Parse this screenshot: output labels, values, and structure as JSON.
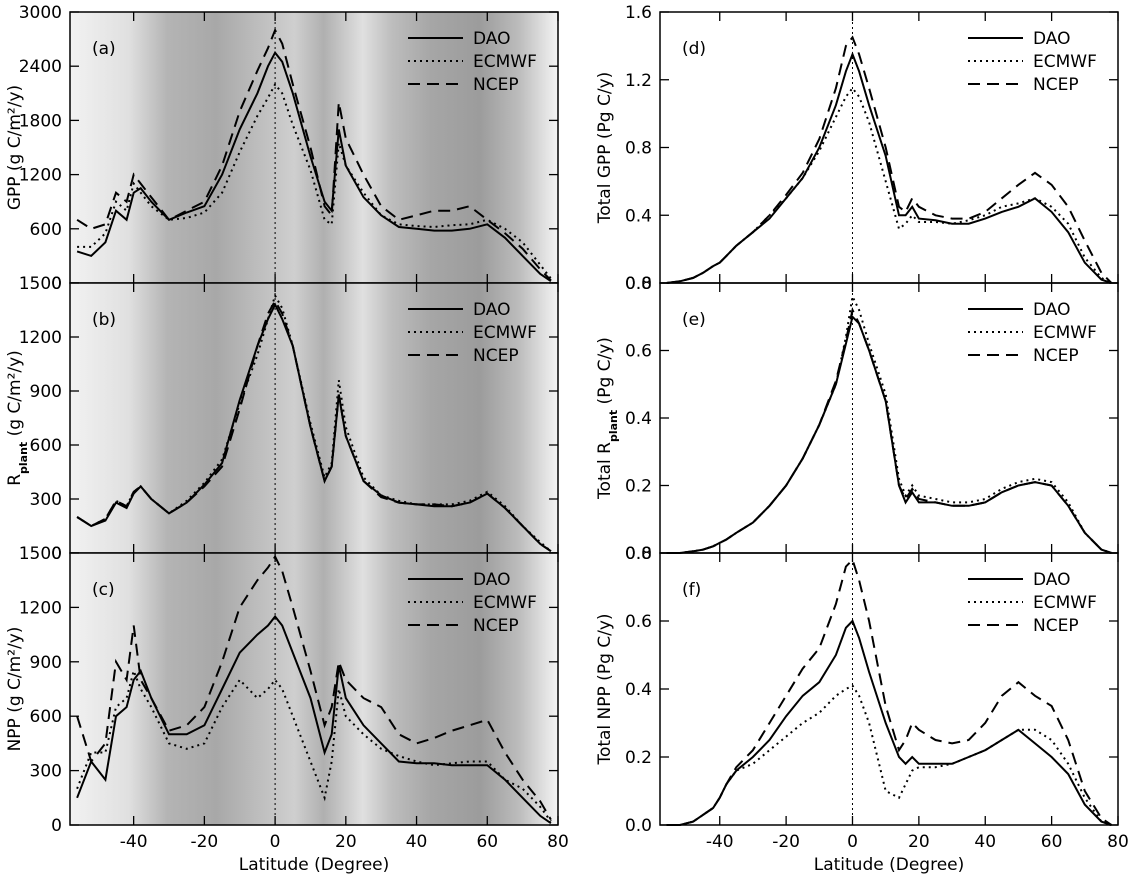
{
  "chart_data": [
    {
      "type": "line",
      "panel_label": "(a)",
      "ylabel": [
        "GPP (g C/m²/y)"
      ],
      "shaded": true,
      "xtick_labels": false,
      "xlim": [
        -58,
        80
      ],
      "xticks": [
        -40,
        -20,
        0,
        20,
        40,
        60,
        80
      ],
      "ylim": [
        0,
        3000
      ],
      "yticks": [
        0,
        600,
        1200,
        1800,
        2400,
        3000
      ],
      "vline": 0,
      "x": [
        -56,
        -52,
        -48,
        -45,
        -42,
        -40,
        -38,
        -35,
        -30,
        -25,
        -20,
        -15,
        -10,
        -5,
        -2,
        0,
        2,
        5,
        10,
        14,
        16,
        18,
        20,
        25,
        30,
        35,
        40,
        45,
        50,
        55,
        60,
        65,
        70,
        75,
        78
      ],
      "series": [
        {
          "name": "DAO",
          "color": "#000000",
          "dash": "solid",
          "values": [
            350,
            300,
            450,
            800,
            700,
            1000,
            1050,
            900,
            700,
            780,
            850,
            1200,
            1700,
            2100,
            2400,
            2550,
            2450,
            2100,
            1400,
            900,
            800,
            1700,
            1300,
            950,
            750,
            620,
            600,
            580,
            580,
            600,
            650,
            500,
            300,
            100,
            20
          ]
        },
        {
          "name": "ECMWF",
          "color": "#000000",
          "dash": "dotted",
          "values": [
            400,
            400,
            550,
            900,
            800,
            1100,
            1000,
            850,
            700,
            720,
            780,
            1000,
            1450,
            1850,
            2050,
            2200,
            2100,
            1750,
            1250,
            700,
            650,
            1550,
            1300,
            1000,
            750,
            650,
            630,
            620,
            640,
            650,
            700,
            600,
            450,
            200,
            50
          ]
        },
        {
          "name": "NCEP",
          "color": "#000000",
          "dash": "dashed",
          "values": [
            700,
            600,
            650,
            1000,
            900,
            1200,
            1100,
            950,
            700,
            800,
            900,
            1300,
            1900,
            2350,
            2600,
            2800,
            2650,
            2200,
            1500,
            850,
            750,
            2000,
            1600,
            1200,
            850,
            700,
            750,
            800,
            800,
            850,
            700,
            550,
            380,
            150,
            30
          ]
        }
      ]
    },
    {
      "type": "line",
      "panel_label": "(b)",
      "ylabel": [
        "R",
        "plant",
        " (g C/m²/y)"
      ],
      "shaded": true,
      "xtick_labels": false,
      "xlim": [
        -58,
        80
      ],
      "xticks": [
        -40,
        -20,
        0,
        20,
        40,
        60,
        80
      ],
      "ylim": [
        0,
        1500
      ],
      "yticks": [
        0,
        300,
        600,
        900,
        1200,
        1500
      ],
      "vline": 0,
      "x": [
        -56,
        -52,
        -48,
        -45,
        -42,
        -40,
        -38,
        -35,
        -30,
        -25,
        -20,
        -15,
        -10,
        -5,
        -2,
        0,
        2,
        5,
        10,
        14,
        16,
        18,
        20,
        25,
        30,
        35,
        40,
        45,
        50,
        55,
        60,
        65,
        70,
        75,
        78
      ],
      "series": [
        {
          "name": "DAO",
          "color": "#000000",
          "dash": "solid",
          "values": [
            200,
            150,
            180,
            280,
            250,
            330,
            370,
            300,
            220,
            280,
            380,
            500,
            850,
            1150,
            1300,
            1380,
            1300,
            1150,
            700,
            400,
            480,
            880,
            650,
            400,
            320,
            280,
            270,
            260,
            260,
            280,
            330,
            250,
            150,
            50,
            10
          ]
        },
        {
          "name": "ECMWF",
          "color": "#000000",
          "dash": "dotted",
          "values": [
            200,
            150,
            190,
            290,
            260,
            340,
            370,
            300,
            220,
            290,
            390,
            520,
            830,
            1100,
            1300,
            1430,
            1360,
            1150,
            720,
            420,
            500,
            960,
            700,
            420,
            320,
            290,
            270,
            270,
            270,
            290,
            340,
            260,
            150,
            60,
            10
          ]
        },
        {
          "name": "NCEP",
          "color": "#000000",
          "dash": "dashed",
          "values": [
            200,
            150,
            190,
            290,
            260,
            340,
            370,
            300,
            220,
            280,
            370,
            480,
            800,
            1150,
            1330,
            1400,
            1330,
            1150,
            700,
            400,
            480,
            880,
            650,
            400,
            310,
            280,
            270,
            270,
            260,
            280,
            330,
            250,
            150,
            50,
            10
          ]
        }
      ]
    },
    {
      "type": "line",
      "panel_label": "(c)",
      "ylabel": [
        "NPP (g C/m²/y)"
      ],
      "shaded": true,
      "xtick_labels": true,
      "xlabel": "Latitude (Degree)",
      "xlim": [
        -58,
        80
      ],
      "xticks": [
        -40,
        -20,
        0,
        20,
        40,
        60,
        80
      ],
      "ylim": [
        0,
        1500
      ],
      "yticks": [
        0,
        300,
        600,
        900,
        1200,
        1500
      ],
      "vline": 0,
      "x": [
        -56,
        -52,
        -48,
        -45,
        -42,
        -40,
        -38,
        -35,
        -30,
        -25,
        -20,
        -15,
        -10,
        -5,
        -2,
        0,
        2,
        5,
        10,
        14,
        16,
        18,
        20,
        25,
        30,
        35,
        40,
        45,
        50,
        55,
        60,
        65,
        70,
        75,
        78
      ],
      "series": [
        {
          "name": "DAO",
          "color": "#000000",
          "dash": "solid",
          "values": [
            150,
            350,
            250,
            600,
            650,
            800,
            850,
            700,
            500,
            500,
            550,
            750,
            950,
            1050,
            1100,
            1150,
            1100,
            950,
            700,
            400,
            500,
            880,
            700,
            550,
            450,
            350,
            340,
            340,
            330,
            330,
            330,
            250,
            150,
            50,
            10
          ]
        },
        {
          "name": "ECMWF",
          "color": "#000000",
          "dash": "dotted",
          "values": [
            200,
            400,
            400,
            650,
            700,
            850,
            750,
            650,
            450,
            420,
            450,
            650,
            800,
            700,
            750,
            800,
            750,
            600,
            350,
            150,
            350,
            750,
            600,
            500,
            420,
            380,
            350,
            330,
            340,
            350,
            350,
            250,
            200,
            100,
            20
          ]
        },
        {
          "name": "NCEP",
          "color": "#000000",
          "dash": "dashed",
          "values": [
            600,
            350,
            450,
            900,
            800,
            1100,
            800,
            700,
            520,
            550,
            650,
            900,
            1200,
            1350,
            1420,
            1480,
            1400,
            1200,
            850,
            550,
            650,
            900,
            800,
            700,
            650,
            500,
            450,
            480,
            520,
            550,
            580,
            400,
            250,
            130,
            30
          ]
        }
      ]
    },
    {
      "type": "line",
      "panel_label": "(d)",
      "ylabel": [
        "Total GPP (Pg C/y)"
      ],
      "shaded": false,
      "xtick_labels": false,
      "xlim": [
        -58,
        80
      ],
      "xticks": [
        -40,
        -20,
        0,
        20,
        40,
        60,
        80
      ],
      "ylim": [
        0,
        1.6
      ],
      "yticks": [
        {
          "value": 0,
          "label": "0.0"
        },
        0.4,
        0.8,
        1.2,
        1.6
      ],
      "vline": 0,
      "x": [
        -56,
        -52,
        -48,
        -45,
        -42,
        -40,
        -38,
        -35,
        -30,
        -25,
        -20,
        -15,
        -10,
        -5,
        -2,
        0,
        2,
        5,
        10,
        14,
        16,
        18,
        20,
        25,
        30,
        35,
        40,
        45,
        50,
        55,
        60,
        65,
        70,
        75,
        78
      ],
      "series": [
        {
          "name": "DAO",
          "color": "#000000",
          "dash": "solid",
          "values": [
            0,
            0.01,
            0.03,
            0.06,
            0.1,
            0.12,
            0.16,
            0.22,
            0.3,
            0.38,
            0.5,
            0.62,
            0.8,
            1.05,
            1.25,
            1.35,
            1.25,
            1.05,
            0.75,
            0.4,
            0.4,
            0.45,
            0.38,
            0.37,
            0.35,
            0.35,
            0.38,
            0.42,
            0.45,
            0.5,
            0.42,
            0.3,
            0.12,
            0.02,
            0
          ]
        },
        {
          "name": "ECMWF",
          "color": "#000000",
          "dash": "dotted",
          "values": [
            0,
            0.01,
            0.03,
            0.06,
            0.1,
            0.12,
            0.16,
            0.22,
            0.3,
            0.4,
            0.5,
            0.62,
            0.78,
            0.98,
            1.1,
            1.15,
            1.1,
            0.95,
            0.6,
            0.32,
            0.35,
            0.4,
            0.36,
            0.36,
            0.35,
            0.37,
            0.4,
            0.45,
            0.47,
            0.5,
            0.45,
            0.35,
            0.15,
            0.03,
            0
          ]
        },
        {
          "name": "NCEP",
          "color": "#000000",
          "dash": "dashed",
          "values": [
            0,
            0.01,
            0.03,
            0.06,
            0.1,
            0.12,
            0.16,
            0.22,
            0.3,
            0.4,
            0.52,
            0.65,
            0.85,
            1.15,
            1.4,
            1.45,
            1.35,
            1.15,
            0.8,
            0.45,
            0.42,
            0.5,
            0.45,
            0.4,
            0.38,
            0.38,
            0.42,
            0.5,
            0.58,
            0.65,
            0.58,
            0.45,
            0.25,
            0.06,
            0
          ]
        }
      ]
    },
    {
      "type": "line",
      "panel_label": "(e)",
      "ylabel": [
        "Total R",
        "plant",
        " (Pg C/y)"
      ],
      "shaded": false,
      "xtick_labels": false,
      "xlim": [
        -58,
        80
      ],
      "xticks": [
        -40,
        -20,
        0,
        20,
        40,
        60,
        80
      ],
      "ylim": [
        0,
        0.8
      ],
      "yticks": [
        {
          "value": 0,
          "label": "0.0"
        },
        0.2,
        0.4,
        0.6,
        0.8
      ],
      "vline": 0,
      "x": [
        -56,
        -52,
        -48,
        -45,
        -42,
        -40,
        -38,
        -35,
        -30,
        -25,
        -20,
        -15,
        -10,
        -5,
        -2,
        0,
        2,
        5,
        10,
        14,
        16,
        18,
        20,
        25,
        30,
        35,
        40,
        45,
        50,
        55,
        60,
        65,
        70,
        75,
        78
      ],
      "series": [
        {
          "name": "DAO",
          "color": "#000000",
          "dash": "solid",
          "values": [
            0,
            0,
            0.005,
            0.01,
            0.02,
            0.03,
            0.04,
            0.06,
            0.09,
            0.14,
            0.2,
            0.28,
            0.38,
            0.5,
            0.62,
            0.7,
            0.68,
            0.6,
            0.45,
            0.2,
            0.15,
            0.18,
            0.15,
            0.15,
            0.14,
            0.14,
            0.15,
            0.18,
            0.2,
            0.21,
            0.2,
            0.14,
            0.06,
            0.01,
            0
          ]
        },
        {
          "name": "ECMWF",
          "color": "#000000",
          "dash": "dotted",
          "values": [
            0,
            0,
            0.005,
            0.01,
            0.02,
            0.03,
            0.04,
            0.06,
            0.09,
            0.14,
            0.2,
            0.28,
            0.38,
            0.5,
            0.64,
            0.76,
            0.72,
            0.62,
            0.47,
            0.22,
            0.17,
            0.2,
            0.17,
            0.16,
            0.15,
            0.15,
            0.16,
            0.19,
            0.21,
            0.22,
            0.21,
            0.15,
            0.06,
            0.01,
            0
          ]
        },
        {
          "name": "NCEP",
          "color": "#000000",
          "dash": "dashed",
          "values": [
            0,
            0,
            0.005,
            0.01,
            0.02,
            0.03,
            0.04,
            0.06,
            0.09,
            0.14,
            0.2,
            0.28,
            0.38,
            0.51,
            0.63,
            0.72,
            0.68,
            0.6,
            0.45,
            0.2,
            0.16,
            0.19,
            0.16,
            0.15,
            0.14,
            0.14,
            0.15,
            0.18,
            0.2,
            0.21,
            0.2,
            0.14,
            0.06,
            0.01,
            0
          ]
        }
      ]
    },
    {
      "type": "line",
      "panel_label": "(f)",
      "ylabel": [
        "Total NPP (Pg C/y)"
      ],
      "shaded": false,
      "xtick_labels": true,
      "xlabel": "Latitude (Degree)",
      "xlim": [
        -58,
        80
      ],
      "xticks": [
        -40,
        -20,
        0,
        20,
        40,
        60,
        80
      ],
      "ylim": [
        0,
        0.8
      ],
      "yticks": [
        {
          "value": 0,
          "label": "0.0"
        },
        0.2,
        0.4,
        0.6,
        0.8
      ],
      "vline": 0,
      "x": [
        -56,
        -52,
        -48,
        -45,
        -42,
        -40,
        -38,
        -35,
        -30,
        -25,
        -20,
        -15,
        -10,
        -5,
        -2,
        0,
        2,
        5,
        10,
        14,
        16,
        18,
        20,
        25,
        30,
        35,
        40,
        45,
        50,
        55,
        60,
        65,
        70,
        75,
        78
      ],
      "series": [
        {
          "name": "DAO",
          "color": "#000000",
          "dash": "solid",
          "values": [
            0,
            0,
            0.01,
            0.03,
            0.05,
            0.08,
            0.12,
            0.16,
            0.2,
            0.25,
            0.32,
            0.38,
            0.42,
            0.5,
            0.58,
            0.6,
            0.55,
            0.45,
            0.3,
            0.2,
            0.18,
            0.2,
            0.18,
            0.18,
            0.18,
            0.2,
            0.22,
            0.25,
            0.28,
            0.24,
            0.2,
            0.15,
            0.06,
            0.01,
            0
          ]
        },
        {
          "name": "ECMWF",
          "color": "#000000",
          "dash": "dotted",
          "values": [
            0,
            0,
            0.01,
            0.03,
            0.05,
            0.08,
            0.12,
            0.16,
            0.18,
            0.22,
            0.26,
            0.3,
            0.33,
            0.38,
            0.4,
            0.41,
            0.38,
            0.3,
            0.1,
            0.08,
            0.12,
            0.16,
            0.17,
            0.17,
            0.18,
            0.2,
            0.22,
            0.25,
            0.28,
            0.28,
            0.25,
            0.18,
            0.08,
            0.01,
            0
          ]
        },
        {
          "name": "NCEP",
          "color": "#000000",
          "dash": "dashed",
          "values": [
            0,
            0,
            0.01,
            0.03,
            0.05,
            0.08,
            0.12,
            0.17,
            0.22,
            0.3,
            0.38,
            0.46,
            0.52,
            0.65,
            0.76,
            0.78,
            0.72,
            0.6,
            0.35,
            0.22,
            0.25,
            0.3,
            0.28,
            0.25,
            0.24,
            0.25,
            0.3,
            0.38,
            0.42,
            0.38,
            0.35,
            0.25,
            0.1,
            0.02,
            0
          ]
        }
      ]
    }
  ]
}
